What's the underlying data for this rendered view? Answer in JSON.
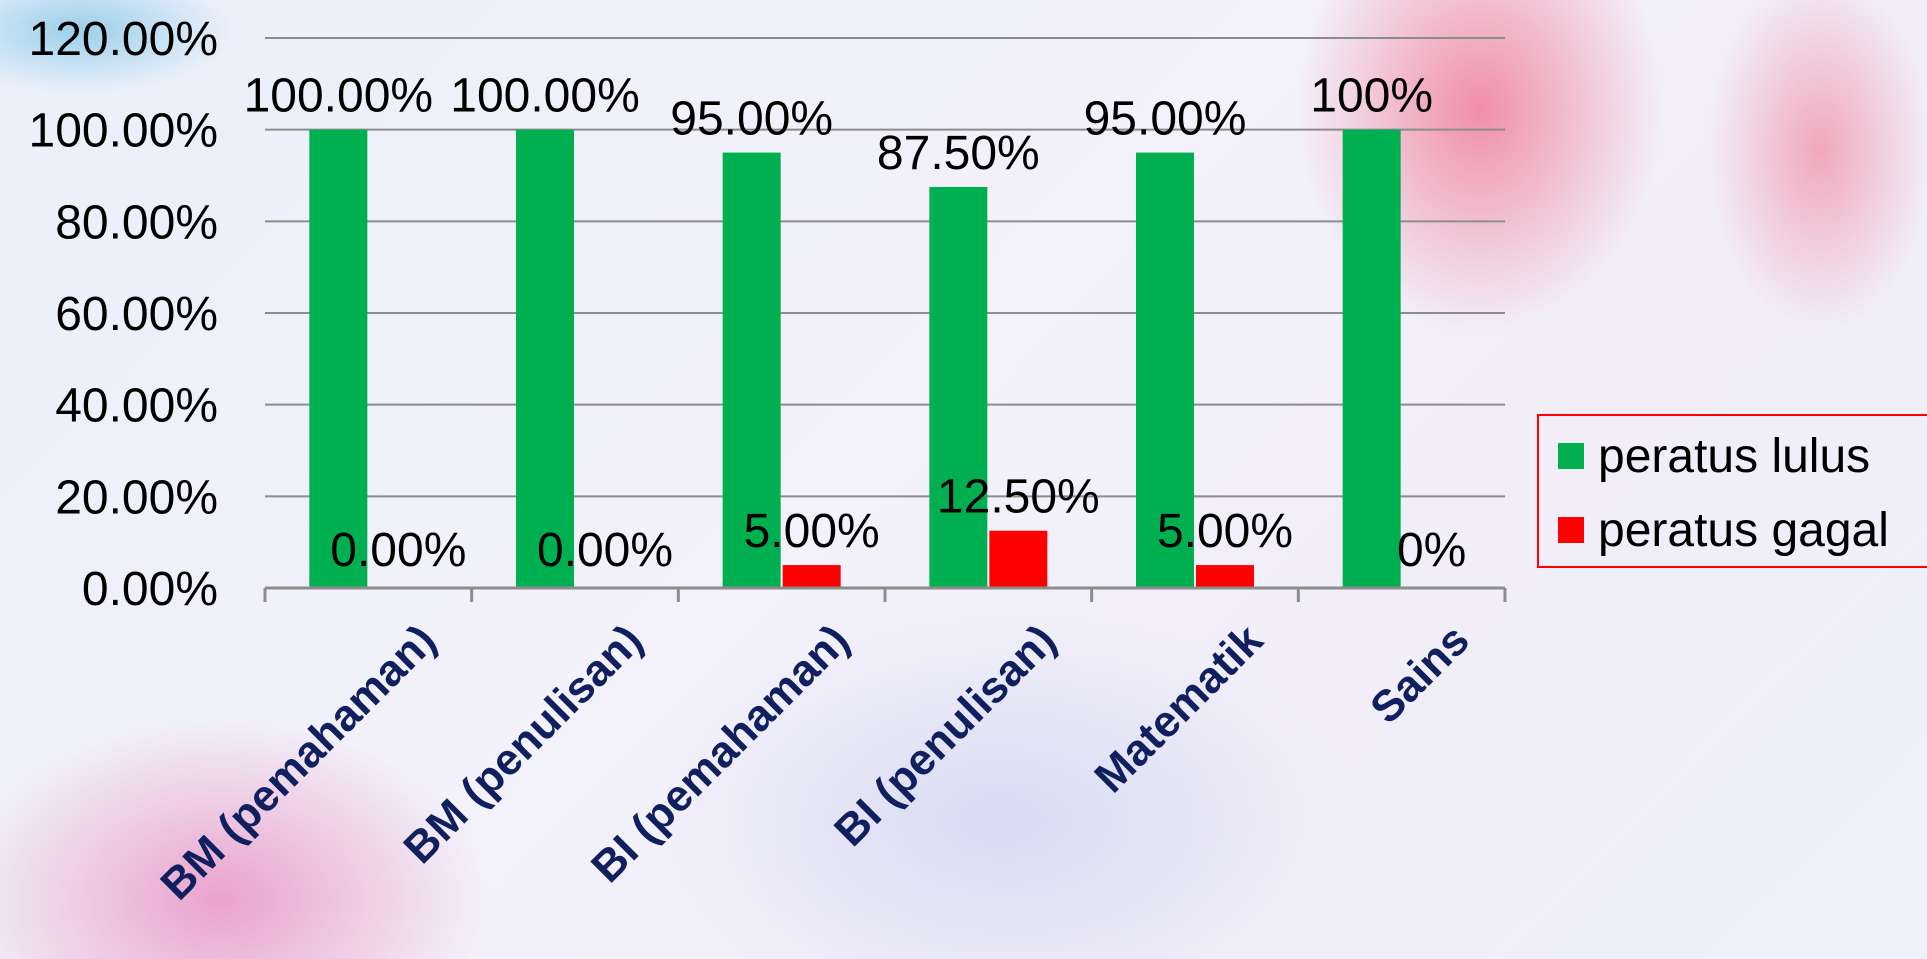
{
  "chart_data": {
    "type": "bar",
    "categories": [
      "BM (pemahaman)",
      "BM (penulisan)",
      "BI (pemahaman)",
      "BI (penulisan)",
      "Matematik",
      "Sains"
    ],
    "series": [
      {
        "name": "peratus lulus",
        "color": "#00b050",
        "values": [
          100,
          100,
          95,
          87.5,
          95,
          100
        ],
        "labels": [
          "100.00%",
          "100.00%",
          "95.00%",
          "87.50%",
          "95.00%",
          "100%"
        ]
      },
      {
        "name": "peratus gagal",
        "color": "#ff0000",
        "values": [
          0,
          0,
          5,
          12.5,
          5,
          0
        ],
        "labels": [
          "0.00%",
          "0.00%",
          "5.00%",
          "12.50%",
          "5.00%",
          "0%"
        ]
      }
    ],
    "yticks": [
      "0.00%",
      "20.00%",
      "40.00%",
      "60.00%",
      "80.00%",
      "100.00%",
      "120.00%"
    ],
    "ylim": [
      0,
      120
    ],
    "grid": true,
    "legend_position": "right",
    "legend_border_color": "#ff0000"
  }
}
